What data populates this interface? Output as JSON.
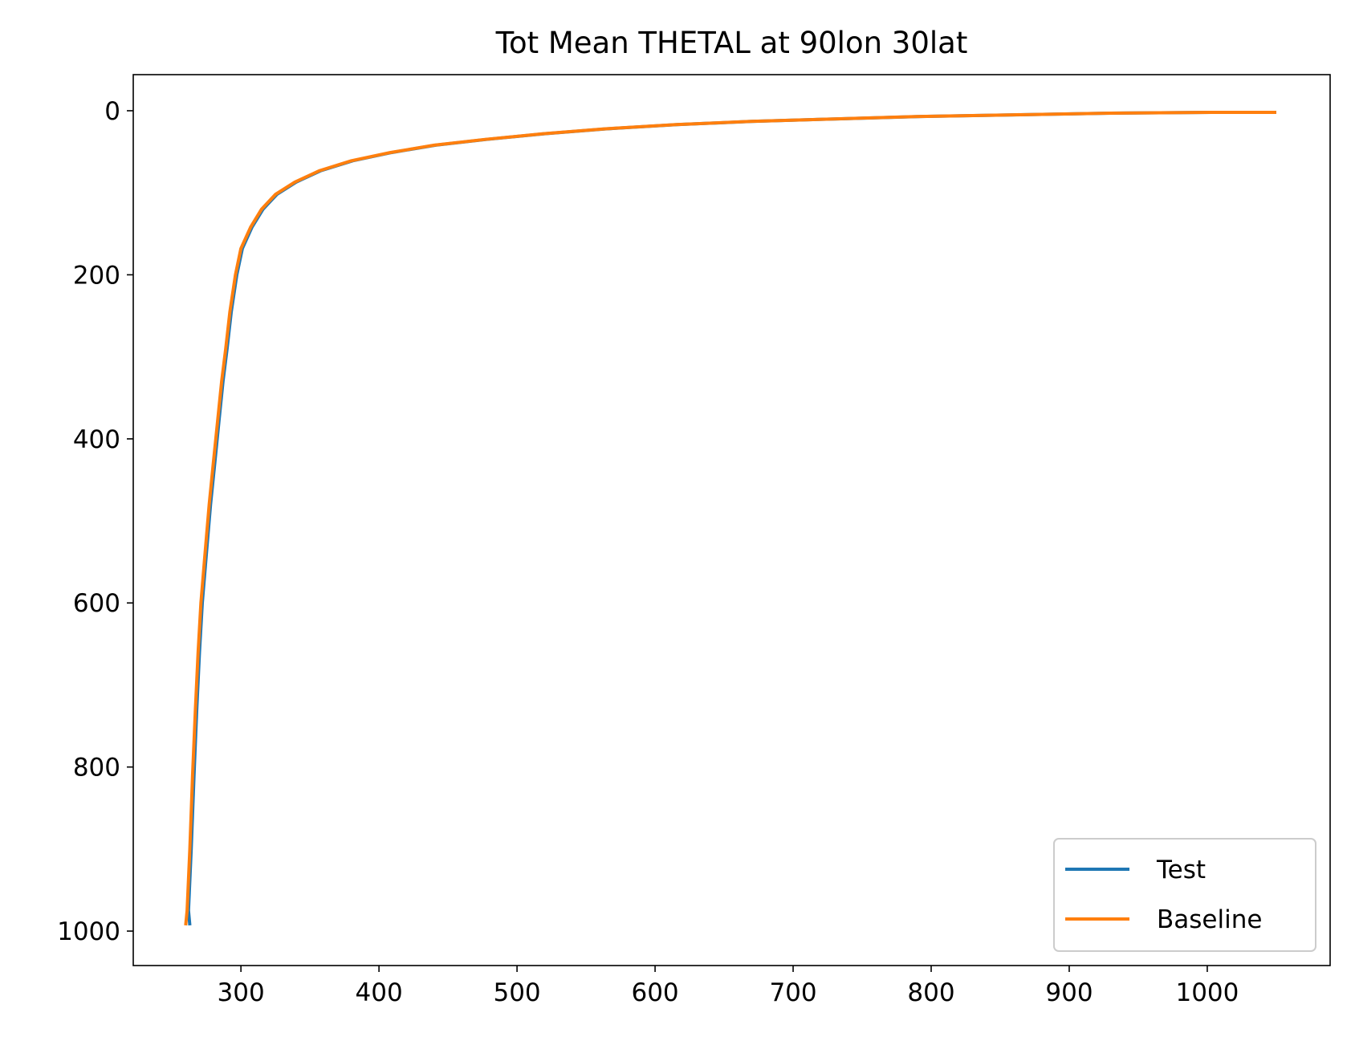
{
  "chart_data": {
    "type": "line",
    "title": "Tot Mean THETAL at 90lon 30lat",
    "xlabel": "",
    "ylabel": "",
    "xlim": [
      222,
      1089
    ],
    "ylim": [
      1042,
      -44
    ],
    "y_inverted": true,
    "xticks": [
      300,
      400,
      500,
      600,
      700,
      800,
      900,
      1000
    ],
    "yticks": [
      0,
      200,
      400,
      600,
      800,
      1000
    ],
    "grid": false,
    "legend_position": "lower right",
    "series": [
      {
        "name": "Test",
        "color": "#1f77b4",
        "x": [
          263,
          262,
          264,
          266,
          268,
          270,
          272,
          275,
          278,
          281,
          284,
          287,
          290,
          293,
          297,
          301,
          308,
          316,
          326,
          340,
          358,
          381,
          409,
          441,
          478,
          520,
          565,
          616,
          670,
          730,
          793,
          860,
          930,
          1003,
          1050
        ],
        "y": [
          993,
          975,
          900,
          810,
          730,
          660,
          600,
          540,
          480,
          430,
          380,
          330,
          290,
          245,
          200,
          168,
          142,
          120,
          102,
          87,
          73,
          61,
          51,
          42,
          35,
          28,
          22,
          17,
          13,
          10,
          7,
          5,
          3,
          2,
          2
        ]
      },
      {
        "name": "Baseline",
        "color": "#ff7f0e",
        "x": [
          260,
          261,
          263,
          265,
          267,
          269,
          271,
          274,
          277,
          280,
          283,
          286,
          289,
          292,
          296,
          300,
          307,
          315,
          325,
          339,
          357,
          380,
          408,
          440,
          477,
          519,
          564,
          615,
          669,
          729,
          792,
          859,
          929,
          1002,
          1050
        ],
        "y": [
          993,
          975,
          900,
          810,
          730,
          660,
          600,
          540,
          480,
          430,
          380,
          330,
          290,
          245,
          200,
          168,
          142,
          120,
          102,
          87,
          73,
          61,
          51,
          42,
          35,
          28,
          22,
          17,
          13,
          10,
          7,
          5,
          3,
          2,
          2
        ]
      }
    ]
  }
}
